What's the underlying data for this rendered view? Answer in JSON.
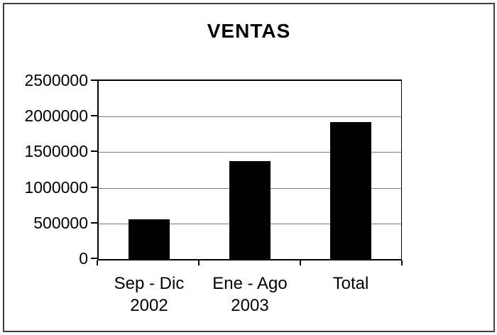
{
  "window": {
    "background": "#ffffff",
    "frame_border_color": "#3f3f3f"
  },
  "chart_data": {
    "type": "bar",
    "title": "VENTAS",
    "categories": [
      {
        "lines": [
          "Sep - Dic",
          "2002"
        ]
      },
      {
        "lines": [
          "Ene - Ago",
          "2003"
        ]
      },
      {
        "lines": [
          "Total"
        ]
      }
    ],
    "values": [
      555000,
      1370000,
      1925000
    ],
    "xlabel": "",
    "ylabel": "",
    "ylim": [
      0,
      2500000
    ],
    "y_ticks": [
      {
        "value": 2500000,
        "label": "2500000"
      },
      {
        "value": 2000000,
        "label": "2000000"
      },
      {
        "value": 1500000,
        "label": "1500000"
      },
      {
        "value": 1000000,
        "label": "1000000"
      },
      {
        "value": 500000,
        "label": "500000"
      },
      {
        "value": 0,
        "label": "0"
      }
    ],
    "grid": true,
    "legend": "none",
    "bar_color": "#000000",
    "gridline_color": "#7f7f7f",
    "text_color": "#000000"
  }
}
